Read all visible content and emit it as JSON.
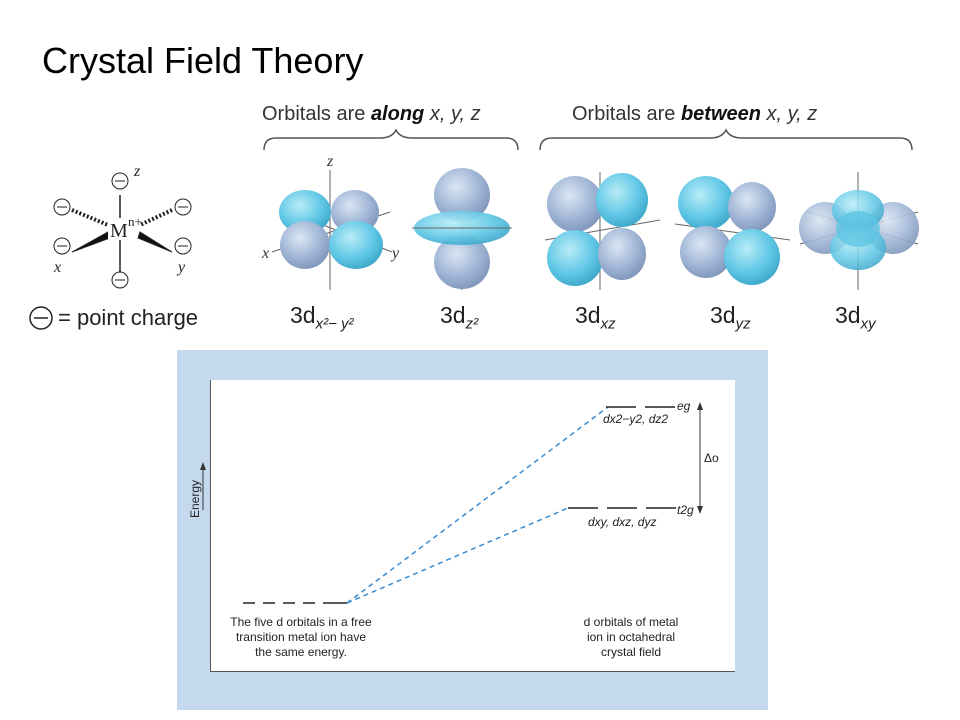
{
  "title": "Crystal Field Theory",
  "headers": {
    "along_prefix": "Orbitals are ",
    "along_bold": "along",
    "along_axes": " x, y, z",
    "between_prefix": "Orbitals are ",
    "between_bold": "between",
    "between_axes": " x, y, z"
  },
  "octahedron": {
    "metal": "M",
    "charge": "n+",
    "axis_z": "z",
    "axis_x": "x",
    "axis_y": "y"
  },
  "point_charge_label": "= point charge",
  "orbitals": [
    {
      "main": "3d",
      "sub": "x²− y²"
    },
    {
      "main": "3d",
      "sub": "z²"
    },
    {
      "main": "3d",
      "sub": "xz"
    },
    {
      "main": "3d",
      "sub": "yz"
    },
    {
      "main": "3d",
      "sub": "xy"
    }
  ],
  "orbital_axes": {
    "z": "z",
    "x": "x",
    "y": "y"
  },
  "diagram": {
    "y_axis_label": "Energy",
    "left_caption": [
      "The five d orbitals in a free",
      "transition metal ion have",
      "the same energy."
    ],
    "right_caption": [
      "d orbitals of metal",
      "ion in octahedral",
      "crystal field"
    ],
    "eg_label": "eg",
    "eg_orbitals": "dx2−y2, dz2",
    "t2g_label": "t2g",
    "t2g_orbitals": "dxy, dxz, dyz",
    "delta_label": "Δo"
  },
  "colors": {
    "orbital_fill": "#6fcfe8",
    "orbital_shade": "#9bb6d8",
    "panel_bg": "#c4d8ee",
    "dashed_line": "#3a8bd0"
  }
}
